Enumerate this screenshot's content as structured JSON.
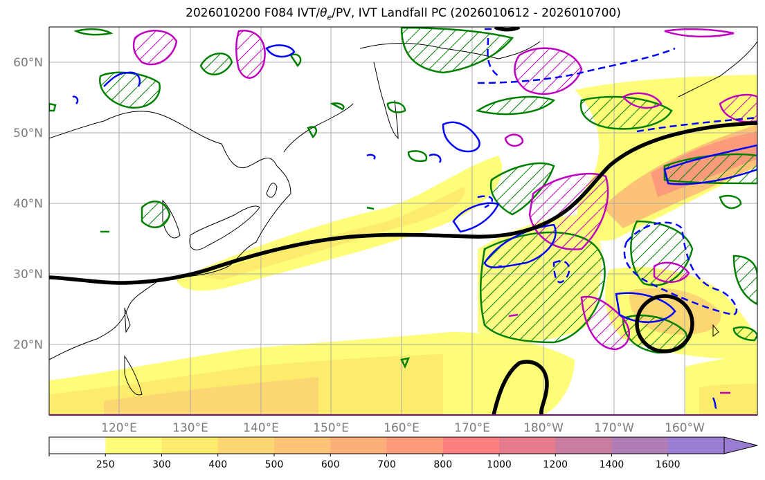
{
  "title": {
    "prefix": "2026010200 F084 IVT/",
    "theta": "θ",
    "theta_sub": "e",
    "suffix": "/PV, IVT Landfall PC (2026010612 - 2026010700)"
  },
  "lon_labels": [
    "120°E",
    "130°E",
    "140°E",
    "150°E",
    "160°E",
    "170°E",
    "180°W",
    "170°W",
    "160°W"
  ],
  "lat_labels": [
    "60°N",
    "50°N",
    "40°N",
    "30°N",
    "20°N"
  ],
  "colorbar": {
    "ticks": [
      "250",
      "300",
      "400",
      "500",
      "600",
      "700",
      "800",
      "1000",
      "1200",
      "1400",
      "1600"
    ],
    "colors": [
      "#ffffff",
      "#fdfd78",
      "#fdec6c",
      "#fcd672",
      "#fcc275",
      "#fcae79",
      "#fc9a7c",
      "#fc8080",
      "#e57b8c",
      "#cb7d9f",
      "#b07db6",
      "#9a7cd0"
    ]
  },
  "legend_colors": {
    "ivt_fill": "#fdfd78",
    "pc_contour": "#000000",
    "theta_e": "#0000ff",
    "pv_positive": "#008000",
    "pv_negative": "#c000c0"
  }
}
